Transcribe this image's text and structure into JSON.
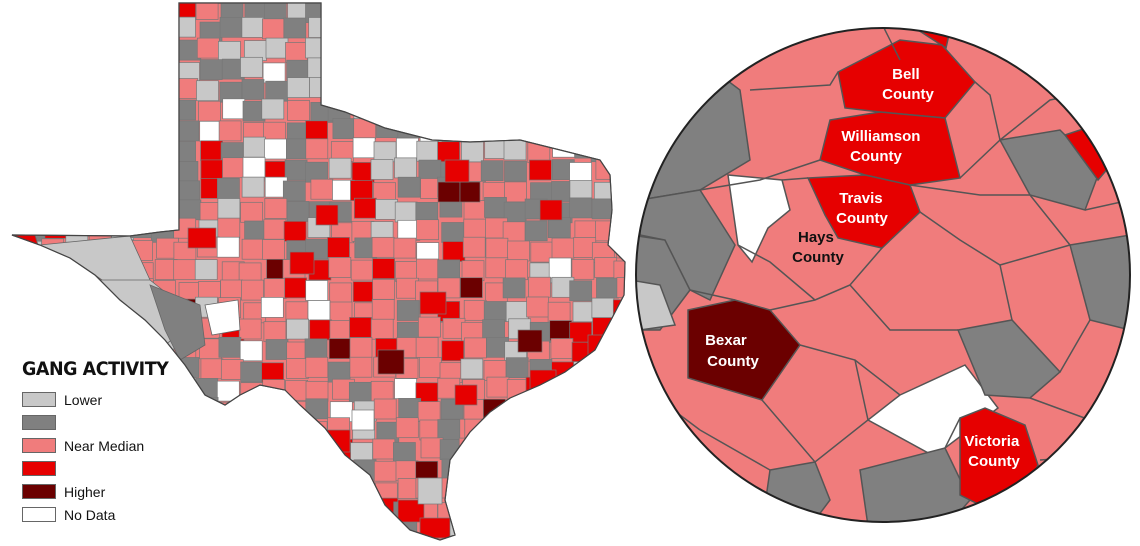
{
  "legend": {
    "title": "GANG ACTIVITY",
    "items": [
      {
        "label": "Lower",
        "color": "#c8c8c8"
      },
      {
        "label": "",
        "color": "#808080"
      },
      {
        "label": "Near Median",
        "color": "#f07c7c"
      },
      {
        "label": "",
        "color": "#e60000"
      },
      {
        "label": "Higher",
        "color": "#6b0000"
      },
      {
        "label": "No Data",
        "color": "#ffffff"
      }
    ]
  },
  "inset": {
    "labels": [
      {
        "name": "bell",
        "lines": [
          "Bell",
          "County"
        ],
        "color": "#ffffff"
      },
      {
        "name": "williamson",
        "lines": [
          "Williamson",
          "County"
        ],
        "color": "#ffffff"
      },
      {
        "name": "travis",
        "lines": [
          "Travis",
          "County"
        ],
        "color": "#ffffff"
      },
      {
        "name": "hays",
        "lines": [
          "Hays",
          "County"
        ],
        "color": "#111111"
      },
      {
        "name": "bexar",
        "lines": [
          "Bexar",
          "County"
        ],
        "color": "#ffffff"
      },
      {
        "name": "victoria",
        "lines": [
          "Victoria",
          "County"
        ],
        "color": "#ffffff"
      }
    ]
  }
}
